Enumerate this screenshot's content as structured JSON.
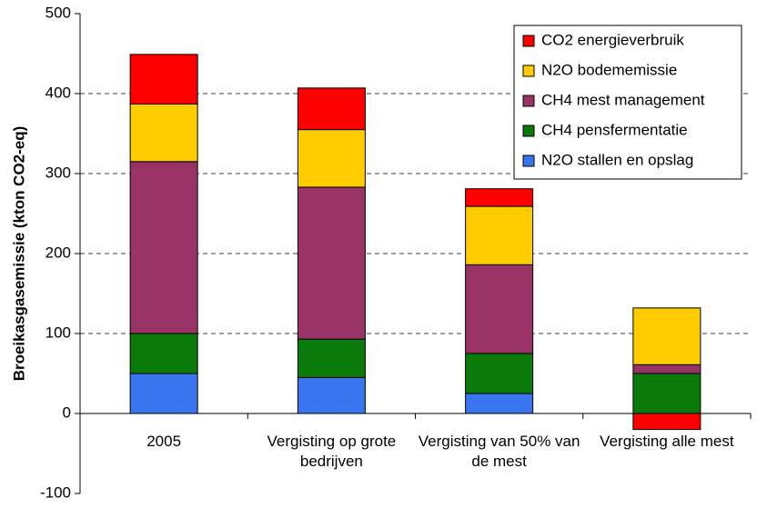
{
  "chart_data": {
    "type": "stacked-bar",
    "y_label": "Broeikasgasemissie (kton CO2-eq)",
    "categories": [
      "2005",
      "Vergisting op grote bedrijven",
      "Vergisting van 50% van de mest",
      "Vergisting alle mest"
    ],
    "series": [
      {
        "name": "N2O stallen en opslag",
        "color": "#3a75f0",
        "values": [
          50,
          45,
          25,
          0
        ]
      },
      {
        "name": "CH4 pensfermentatie",
        "color": "#0a7a0a",
        "values": [
          50,
          48,
          50,
          50
        ]
      },
      {
        "name": "CH4 mest management",
        "color": "#993366",
        "values": [
          215,
          190,
          111,
          11
        ]
      },
      {
        "name": "N2O bodememissie",
        "color": "#ffcc00",
        "values": [
          72,
          72,
          73,
          71
        ]
      },
      {
        "name": "CO2 energieverbruik",
        "color": "#ff0000",
        "values": [
          62,
          52,
          22,
          -20
        ]
      }
    ],
    "ylim": [
      -100,
      500
    ],
    "yticks": [
      -100,
      0,
      100,
      200,
      300,
      400,
      500
    ],
    "grid": true
  }
}
